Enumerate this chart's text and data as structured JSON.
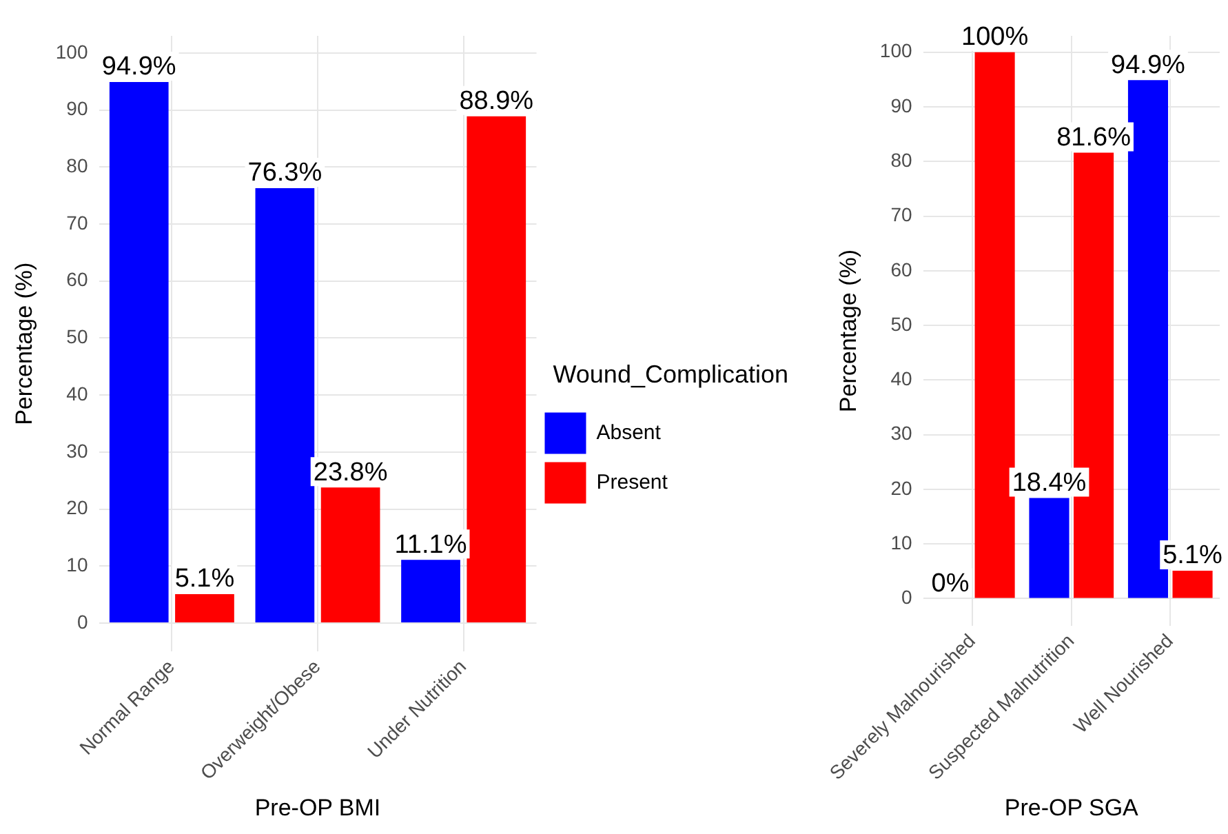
{
  "chart_data": [
    {
      "type": "bar",
      "xlabel": "Pre-OP BMI",
      "ylabel": "Percentage (%)",
      "legend_title": "Wound_Complication",
      "legend": "right",
      "grid": true,
      "categories": [
        "Normal Range",
        "Overweight/Obese",
        "Under Nutrition"
      ],
      "ylim": [
        -5,
        103
      ],
      "yticks": [
        0,
        10,
        20,
        30,
        40,
        50,
        60,
        70,
        80,
        90,
        100
      ],
      "series": [
        {
          "name": "Absent",
          "color": "#0000ff",
          "values": [
            94.9,
            76.3,
            11.1
          ],
          "value_labels": [
            "94.9%",
            "76.3%",
            "11.1%"
          ]
        },
        {
          "name": "Present",
          "color": "#ff0000",
          "values": [
            5.1,
            23.8,
            88.9
          ],
          "value_labels": [
            "5.1%",
            "23.8%",
            "88.9%"
          ]
        }
      ]
    },
    {
      "type": "bar",
      "xlabel": "Pre-OP SGA",
      "ylabel": "Percentage (%)",
      "grid": true,
      "categories": [
        "Severely Malnourished",
        "Suspected Malnutrition",
        "Well Nourished"
      ],
      "ylim": [
        -5,
        103
      ],
      "yticks": [
        0,
        10,
        20,
        30,
        40,
        50,
        60,
        70,
        80,
        90,
        100
      ],
      "series": [
        {
          "color": "#0000ff",
          "values": [
            0,
            18.4,
            94.9
          ],
          "value_labels": [
            "0%",
            "18.4%",
            "94.9%"
          ]
        },
        {
          "color": "#ff0000",
          "values": [
            100,
            81.6,
            5.1
          ],
          "value_labels": [
            "100%",
            "81.6%",
            "5.1%"
          ]
        }
      ]
    }
  ]
}
